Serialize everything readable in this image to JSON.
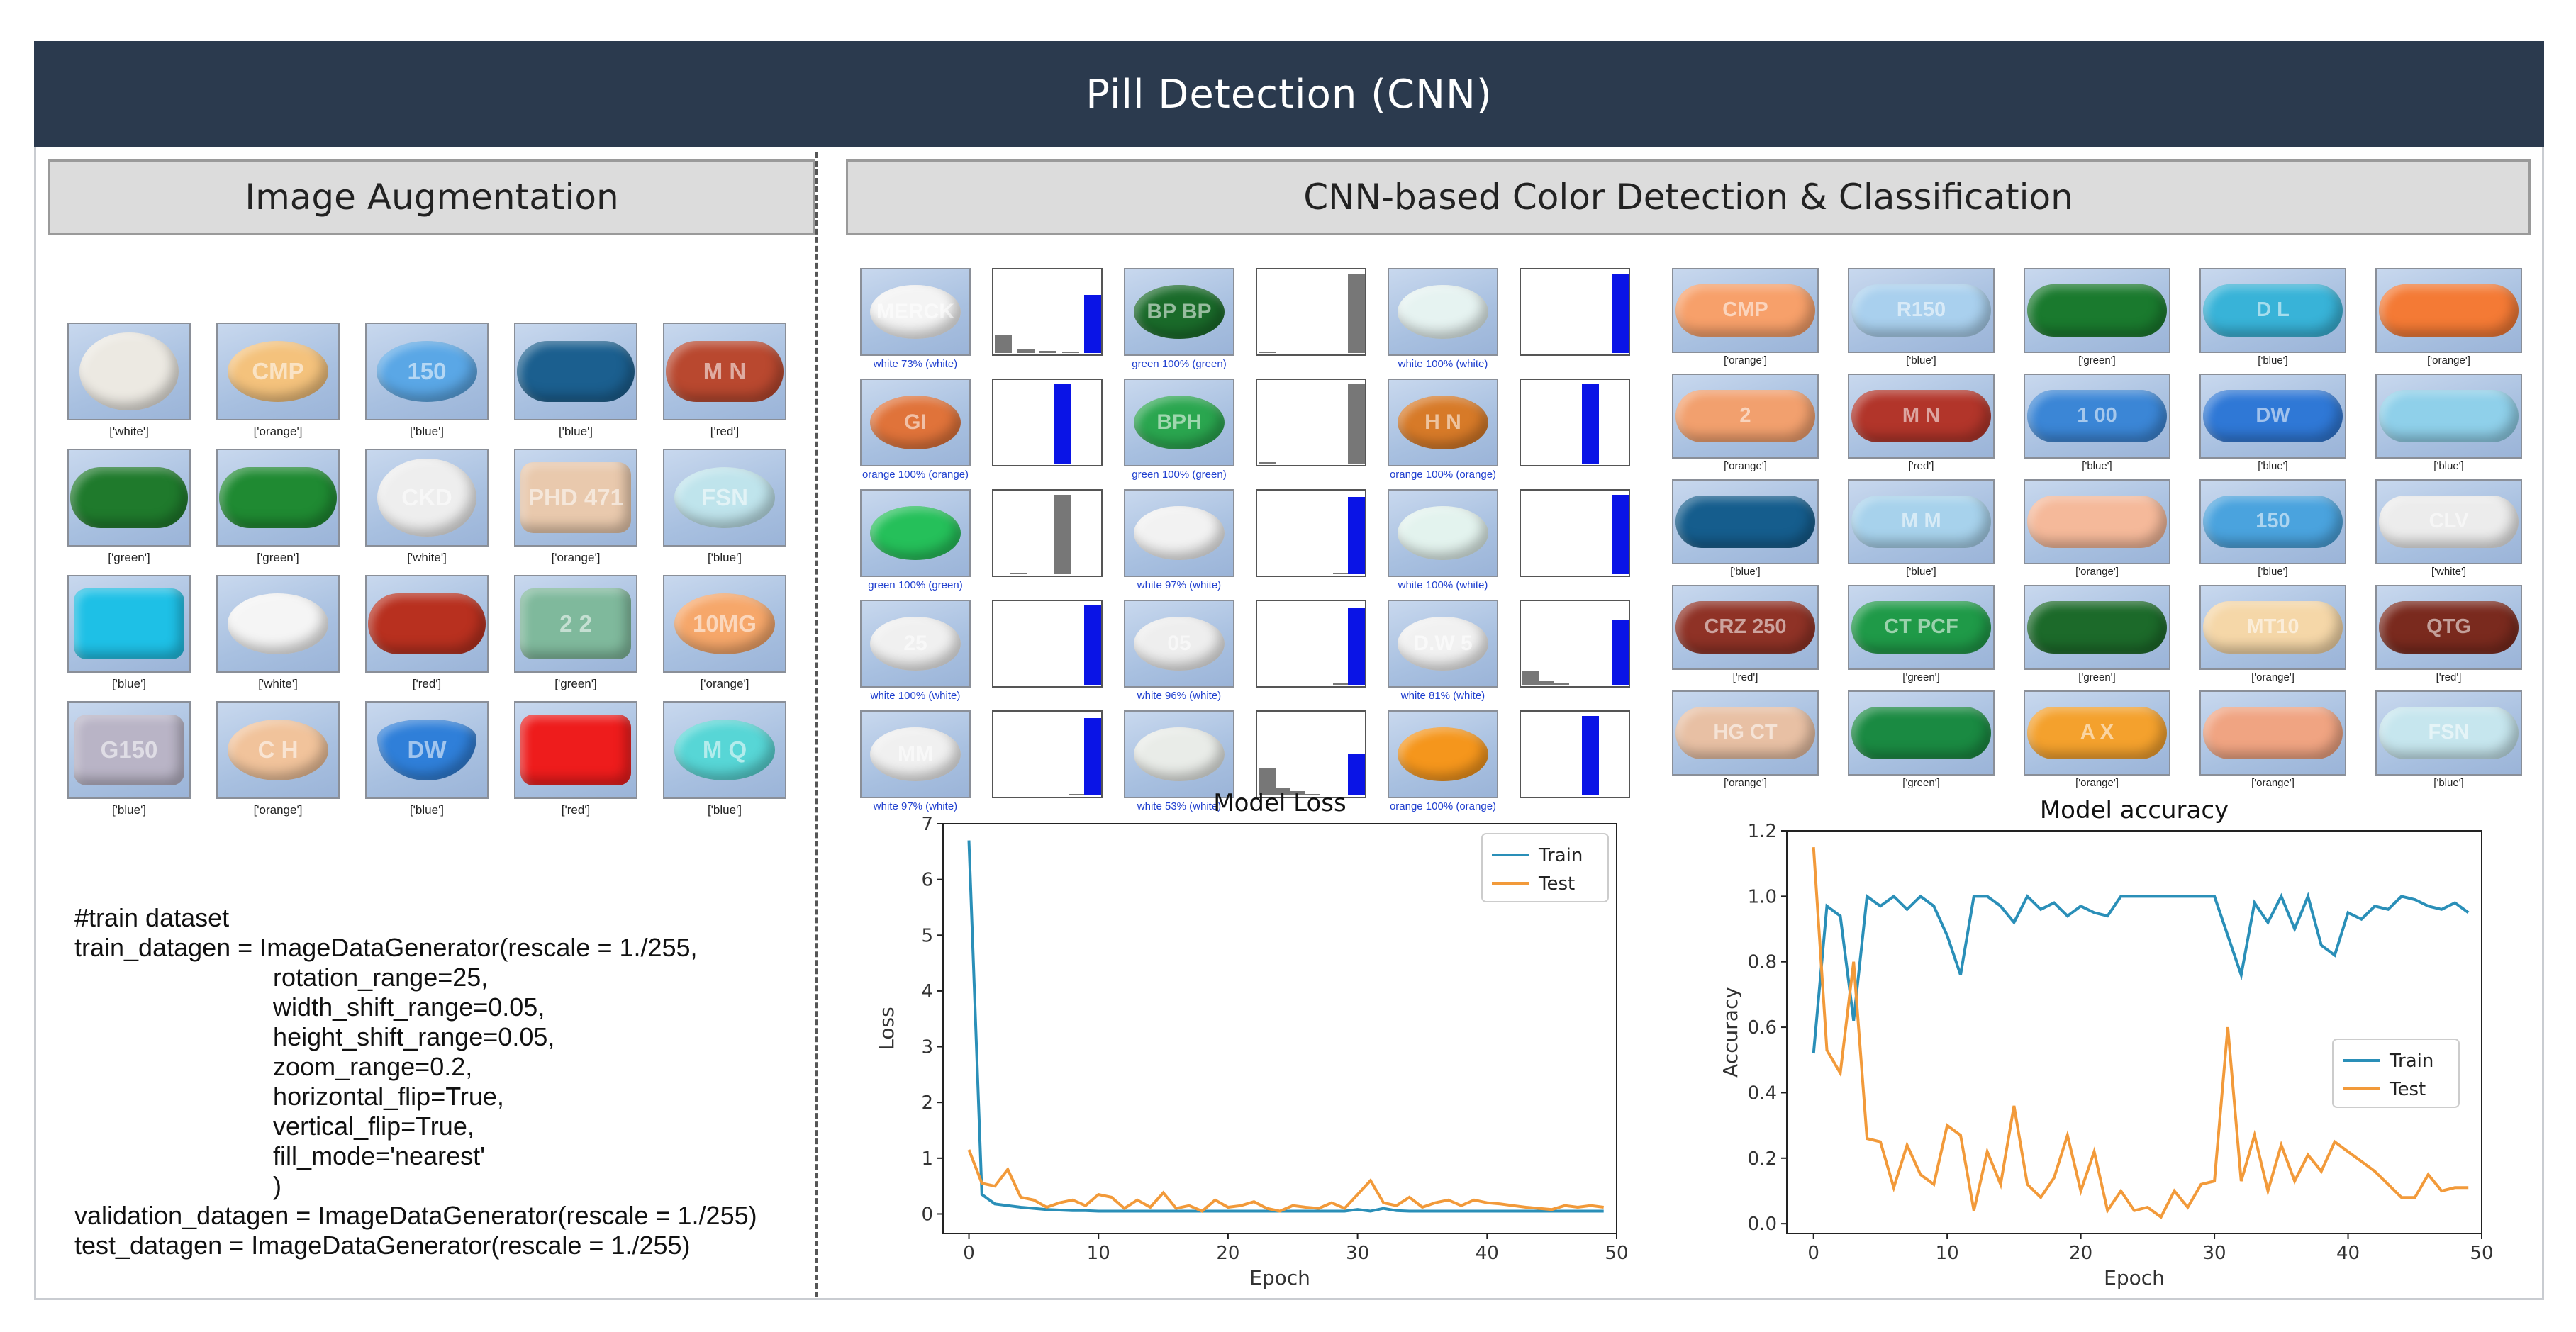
{
  "title": "Pill Detection (CNN)",
  "left_section": {
    "header": "Image Augmentation",
    "pills": [
      {
        "label": "['white']",
        "color": "#ece9e2",
        "text": "",
        "shape": "round"
      },
      {
        "label": "['orange']",
        "color": "#f4c27c",
        "text": "CMP",
        "shape": "oval"
      },
      {
        "label": "['blue']",
        "color": "#5aa7e6",
        "text": "150",
        "shape": "oval"
      },
      {
        "label": "['blue']",
        "color": "#1b5f8f",
        "text": "",
        "shape": "capsule"
      },
      {
        "label": "['red']",
        "color": "#b9482f",
        "text": "M N",
        "shape": "capsule"
      },
      {
        "label": "['green']",
        "color": "#1f7a2c",
        "text": "",
        "shape": "capsule"
      },
      {
        "label": "['green']",
        "color": "#1f8a32",
        "text": "",
        "shape": "capsule"
      },
      {
        "label": "['white']",
        "color": "#eeeeee",
        "text": "CKD",
        "shape": "round"
      },
      {
        "label": "['orange']",
        "color": "#e9c9ad",
        "text": "PHD 471",
        "shape": "rect"
      },
      {
        "label": "['blue']",
        "color": "#bfe4ec",
        "text": "FSN",
        "shape": "oval"
      },
      {
        "label": "['blue']",
        "color": "#1ec0e6",
        "text": "",
        "shape": "rect"
      },
      {
        "label": "['white']",
        "color": "#f5f5f5",
        "text": "",
        "shape": "oval"
      },
      {
        "label": "['red']",
        "color": "#b8301f",
        "text": "",
        "shape": "capsule"
      },
      {
        "label": "['green']",
        "color": "#7fb99c",
        "text": "2 2",
        "shape": "rect"
      },
      {
        "label": "['orange']",
        "color": "#f6a76a",
        "text": "10MG",
        "shape": "oval"
      },
      {
        "label": "['blue']",
        "color": "#b9b4c6",
        "text": "G150",
        "shape": "rect"
      },
      {
        "label": "['orange']",
        "color": "#f1c39b",
        "text": "C H",
        "shape": "oval"
      },
      {
        "label": "['blue']",
        "color": "#2f7fd9",
        "text": "DW",
        "shape": "tri"
      },
      {
        "label": "['red']",
        "color": "#ee1c1c",
        "text": "",
        "shape": "rect"
      },
      {
        "label": "['blue']",
        "color": "#57d6d6",
        "text": "M Q",
        "shape": "oval"
      }
    ],
    "code_lines": [
      "#train dataset",
      "train_datagen = ImageDataGenerator(rescale = 1./255,",
      "                            rotation_range=25,",
      "                            width_shift_range=0.05,",
      "                            height_shift_range=0.05,",
      "                            zoom_range=0.2,",
      "                            horizontal_flip=True,",
      "                            vertical_flip=True,",
      "                            fill_mode='nearest'",
      "                            )",
      "validation_datagen = ImageDataGenerator(rescale = 1./255)",
      "test_datagen = ImageDataGenerator(rescale = 1./255)"
    ]
  },
  "right_section": {
    "header": "CNN-based Color Detection & Classification",
    "detections": [
      {
        "label": "white 73% (white)",
        "color": "#f4f4f4",
        "text": "MERCK",
        "hist": [
          0.22,
          0.05,
          0.03,
          0.02,
          0.73
        ],
        "highlight": 4
      },
      {
        "label": "green 100% (green)",
        "color": "#1a6b2a",
        "text": "BP BP",
        "hist": [
          0,
          0,
          0,
          0,
          0,
          0,
          1.0
        ],
        "highlight": 0
      },
      {
        "label": "white 100% (white)",
        "color": "#e6f3f1",
        "text": "",
        "hist": [
          0,
          0,
          0,
          0,
          0,
          0,
          1.0
        ],
        "highlight": 6
      },
      {
        "label": "orange 100% (orange)",
        "color": "#e0733a",
        "text": "GI",
        "hist": [
          0,
          0,
          0,
          0,
          1.0,
          0,
          0
        ],
        "highlight": 4
      },
      {
        "label": "green 100% (green)",
        "color": "#2aa64f",
        "text": "BPH",
        "hist": [
          0,
          0,
          0,
          0,
          0,
          0,
          1.0
        ],
        "highlight": 0
      },
      {
        "label": "orange 100% (orange)",
        "color": "#d77a28",
        "text": "H N",
        "hist": [
          0,
          0,
          0,
          0,
          1.0,
          0,
          0
        ],
        "highlight": 4
      },
      {
        "label": "green 100% (green)",
        "color": "#25c05a",
        "text": "",
        "hist": [
          0,
          0,
          0,
          0,
          1.0,
          0,
          0
        ],
        "highlight": 1
      },
      {
        "label": "white 97% (white)",
        "color": "#f2f2f2",
        "text": "",
        "hist": [
          0,
          0,
          0,
          0,
          0,
          0.02,
          0.97
        ],
        "highlight": 6
      },
      {
        "label": "white 100% (white)",
        "color": "#e3f3ee",
        "text": "",
        "hist": [
          0,
          0,
          0,
          0,
          0,
          0,
          1.0
        ],
        "highlight": 6
      },
      {
        "label": "white 100% (white)",
        "color": "#f0f0f0",
        "text": "25",
        "hist": [
          0,
          0,
          0,
          0,
          0,
          0,
          1.0
        ],
        "highlight": 6
      },
      {
        "label": "white 96% (white)",
        "color": "#eeeeee",
        "text": "05",
        "hist": [
          0,
          0,
          0,
          0,
          0,
          0.03,
          0.96
        ],
        "highlight": 6
      },
      {
        "label": "white 81% (white)",
        "color": "#f1f1f1",
        "text": "D.W 5",
        "hist": [
          0.17,
          0.05,
          0.02,
          0,
          0,
          0,
          0.81
        ],
        "highlight": 6
      },
      {
        "label": "white 97% (white)",
        "color": "#f0f0f0",
        "text": "MM",
        "hist": [
          0,
          0,
          0,
          0,
          0,
          0.02,
          0.97
        ],
        "highlight": 6
      },
      {
        "label": "white 53% (white)",
        "color": "#e9ece8",
        "text": "",
        "hist": [
          0.35,
          0.1,
          0.05,
          0.02,
          0,
          0,
          0.53
        ],
        "highlight": 6
      },
      {
        "label": "orange 100% (orange)",
        "color": "#f5961c",
        "text": "",
        "hist": [
          0,
          0,
          0,
          0,
          1.0,
          0,
          0
        ],
        "highlight": 4
      }
    ],
    "classified": [
      {
        "label": "['orange']",
        "color": "#f7a06a",
        "text": "CMP"
      },
      {
        "label": "['blue']",
        "color": "#a9d0ee",
        "text": "R150"
      },
      {
        "label": "['green']",
        "color": "#1a7a2e",
        "text": ""
      },
      {
        "label": "['blue']",
        "color": "#38b3d8",
        "text": "D L"
      },
      {
        "label": "['orange']",
        "color": "#f47a35",
        "text": ""
      },
      {
        "label": "['orange']",
        "color": "#f2a06e",
        "text": "2"
      },
      {
        "label": "['red']",
        "color": "#b2352a",
        "text": "M N"
      },
      {
        "label": "['blue']",
        "color": "#3b86d6",
        "text": "1 00"
      },
      {
        "label": "['blue']",
        "color": "#2f78d6",
        "text": "DW"
      },
      {
        "label": "['blue']",
        "color": "#8fd0ea",
        "text": ""
      },
      {
        "label": "['blue']",
        "color": "#155d8d",
        "text": ""
      },
      {
        "label": "['blue']",
        "color": "#a7d2ec",
        "text": "M M"
      },
      {
        "label": "['orange']",
        "color": "#f5b99a",
        "text": ""
      },
      {
        "label": "['blue']",
        "color": "#4aa3de",
        "text": "150"
      },
      {
        "label": "['white']",
        "color": "#ececec",
        "text": "CLV"
      },
      {
        "label": "['red']",
        "color": "#8f3226",
        "text": "CRZ 250"
      },
      {
        "label": "['green']",
        "color": "#1f9a48",
        "text": "CT PCF"
      },
      {
        "label": "['green']",
        "color": "#1c6a2a",
        "text": ""
      },
      {
        "label": "['orange']",
        "color": "#f5d7a8",
        "text": "MT10"
      },
      {
        "label": "['red']",
        "color": "#7a2a1e",
        "text": "QTG"
      },
      {
        "label": "['orange']",
        "color": "#e8c0a4",
        "text": "HG CT"
      },
      {
        "label": "['green']",
        "color": "#1a8a42",
        "text": ""
      },
      {
        "label": "['orange']",
        "color": "#f4a12d",
        "text": "A X"
      },
      {
        "label": "['orange']",
        "color": "#f0a482",
        "text": ""
      },
      {
        "label": "['blue']",
        "color": "#c6e6ee",
        "text": "FSN"
      }
    ]
  },
  "chart_data": [
    {
      "type": "line",
      "title": "Model Loss",
      "xlabel": "Epoch",
      "ylabel": "Loss",
      "xlim": [
        -2,
        50
      ],
      "ylim": [
        -0.35,
        7.0
      ],
      "xticks": [
        0,
        10,
        20,
        30,
        40,
        50
      ],
      "yticks": [
        0,
        1,
        2,
        3,
        4,
        5,
        6,
        7
      ],
      "legend_position": "top-right",
      "series": [
        {
          "name": "Train",
          "color": "#2a8fb8",
          "values": [
            6.7,
            0.35,
            0.18,
            0.15,
            0.12,
            0.1,
            0.08,
            0.07,
            0.06,
            0.06,
            0.05,
            0.05,
            0.05,
            0.05,
            0.05,
            0.05,
            0.05,
            0.05,
            0.05,
            0.05,
            0.05,
            0.05,
            0.05,
            0.05,
            0.05,
            0.05,
            0.05,
            0.05,
            0.05,
            0.05,
            0.08,
            0.05,
            0.1,
            0.06,
            0.05,
            0.05,
            0.05,
            0.05,
            0.05,
            0.05,
            0.05,
            0.05,
            0.05,
            0.05,
            0.05,
            0.05,
            0.05,
            0.05,
            0.05,
            0.05
          ]
        },
        {
          "name": "Test",
          "color": "#f29a3a",
          "values": [
            1.15,
            0.55,
            0.5,
            0.8,
            0.3,
            0.25,
            0.12,
            0.2,
            0.25,
            0.15,
            0.35,
            0.3,
            0.1,
            0.25,
            0.12,
            0.38,
            0.1,
            0.15,
            0.05,
            0.25,
            0.12,
            0.15,
            0.22,
            0.1,
            0.05,
            0.15,
            0.12,
            0.1,
            0.2,
            0.1,
            0.35,
            0.6,
            0.2,
            0.15,
            0.3,
            0.12,
            0.2,
            0.25,
            0.15,
            0.25,
            0.2,
            0.18,
            0.15,
            0.12,
            0.1,
            0.08,
            0.15,
            0.12,
            0.15,
            0.12
          ]
        }
      ]
    },
    {
      "type": "line",
      "title": "Model accuracy",
      "xlabel": "Epoch",
      "ylabel": "Accuracy",
      "xlim": [
        -2,
        50
      ],
      "ylim": [
        -0.03,
        1.2
      ],
      "xticks": [
        0,
        10,
        20,
        30,
        40,
        50
      ],
      "yticks": [
        0.0,
        0.2,
        0.4,
        0.6,
        0.8,
        1.0,
        1.2
      ],
      "legend_position": "center-right",
      "series": [
        {
          "name": "Train",
          "color": "#2a8fb8",
          "values": [
            0.52,
            0.97,
            0.94,
            0.62,
            1.0,
            0.97,
            1.0,
            0.96,
            1.0,
            0.97,
            0.88,
            0.76,
            1.0,
            1.0,
            0.97,
            0.92,
            1.0,
            0.96,
            0.98,
            0.94,
            0.97,
            0.95,
            0.94,
            1.0,
            1.0,
            1.0,
            1.0,
            1.0,
            1.0,
            1.0,
            1.0,
            0.88,
            0.76,
            0.98,
            0.92,
            1.0,
            0.9,
            1.0,
            0.85,
            0.82,
            0.95,
            0.93,
            0.97,
            0.96,
            1.0,
            0.99,
            0.97,
            0.96,
            0.98,
            0.95
          ]
        },
        {
          "name": "Test",
          "color": "#f29a3a",
          "values": [
            1.15,
            0.53,
            0.46,
            0.8,
            0.26,
            0.25,
            0.11,
            0.24,
            0.15,
            0.12,
            0.3,
            0.27,
            0.04,
            0.22,
            0.12,
            0.36,
            0.12,
            0.08,
            0.14,
            0.27,
            0.1,
            0.22,
            0.04,
            0.1,
            0.04,
            0.05,
            0.02,
            0.1,
            0.05,
            0.12,
            0.13,
            0.6,
            0.13,
            0.27,
            0.1,
            0.24,
            0.13,
            0.21,
            0.16,
            0.25,
            0.22,
            0.19,
            0.16,
            0.12,
            0.08,
            0.08,
            0.15,
            0.1,
            0.11,
            0.11
          ]
        }
      ]
    }
  ]
}
